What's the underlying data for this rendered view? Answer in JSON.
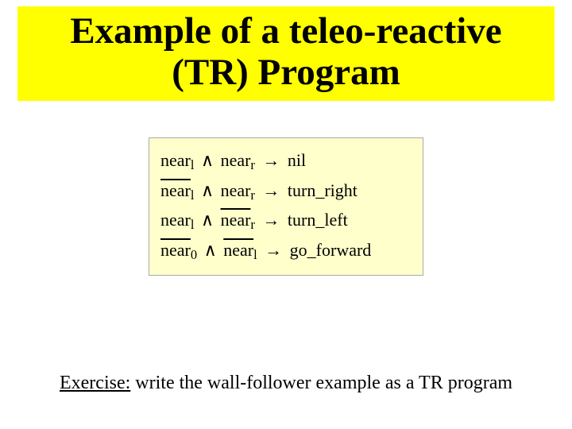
{
  "title": {
    "line1": "Example of a teleo-reactive",
    "line2": "(TR) Program",
    "bg_color": "#ffff00",
    "text_color": "#000000",
    "font_size_pt": 35,
    "font_weight": "bold"
  },
  "formula": {
    "bg_color": "#ffffcc",
    "border_color": "#aaaaaa",
    "font_size_pt": 16,
    "text_color": "#000000",
    "symbols": {
      "near": "near",
      "and": "∧",
      "arrow": "→",
      "nil": "nil",
      "turn_right": "turn_right",
      "turn_left": "turn_left",
      "go_forward": "go_forward",
      "sub_l": "l",
      "sub_r": "r",
      "sub_0": "0"
    },
    "rows": [
      {
        "left_neg": false,
        "left_sub": "l",
        "right_neg": false,
        "right_sub": "r",
        "action": "nil"
      },
      {
        "left_neg": true,
        "left_sub": "l",
        "right_neg": false,
        "right_sub": "r",
        "action": "turn_right"
      },
      {
        "left_neg": false,
        "left_sub": "l",
        "right_neg": true,
        "right_sub": "r",
        "action": "turn_left"
      },
      {
        "left_neg": true,
        "left_sub": "0",
        "right_neg": true,
        "right_sub": "l",
        "action": "go_forward"
      }
    ]
  },
  "exercise": {
    "label": "Exercise:",
    "rest": " write the wall-follower example as a TR program",
    "font_size_pt": 18,
    "text_color": "#000000"
  }
}
